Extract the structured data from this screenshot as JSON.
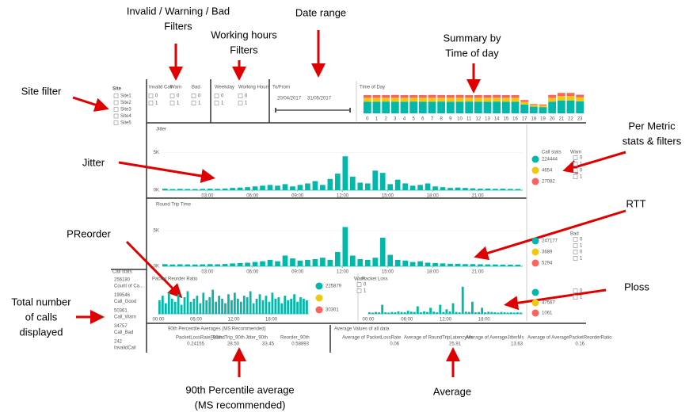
{
  "annotations": [
    {
      "lines": [
        "Invalid / Warning / Bad",
        "Filters"
      ]
    },
    {
      "lines": [
        "Date range"
      ]
    },
    {
      "lines": [
        "Working hours",
        "Filters"
      ]
    },
    {
      "lines": [
        "Summary by",
        "Time of day"
      ]
    },
    {
      "lines": [
        "Site filter"
      ]
    },
    {
      "lines": [
        "Per Metric",
        "stats & filters"
      ]
    },
    {
      "lines": [
        "Jitter"
      ]
    },
    {
      "lines": [
        "RTT"
      ]
    },
    {
      "lines": [
        "PReorder"
      ]
    },
    {
      "lines": [
        "Ploss"
      ]
    },
    {
      "lines": [
        "Total number",
        "of calls",
        "displayed"
      ]
    },
    {
      "lines": [
        "90th Percentile average",
        "(MS recommended)"
      ]
    },
    {
      "lines": [
        "Average"
      ]
    }
  ],
  "site_filter": {
    "title": "Site",
    "options": [
      "Site1",
      "Site2",
      "Site3",
      "Site4",
      "Site5"
    ]
  },
  "status_filters": {
    "groups": [
      {
        "title": "Invalid Call",
        "options": [
          "0",
          "1"
        ]
      },
      {
        "title": "Warn",
        "options": [
          "0",
          "1"
        ]
      },
      {
        "title": "Bad",
        "options": [
          "0",
          "1"
        ]
      }
    ]
  },
  "hours_filters": {
    "groups": [
      {
        "title": "Weekday",
        "options": [
          "0",
          "1"
        ]
      },
      {
        "title": "Working Hours",
        "options": [
          "0",
          "1"
        ]
      }
    ]
  },
  "date_range": {
    "title": "To/From",
    "from": "20/04/2017",
    "to": "31/05/2017"
  },
  "time_of_day": {
    "type": "bar",
    "stacked": true,
    "title": "Time of Day",
    "categories": [
      "0",
      "1",
      "2",
      "3",
      "4",
      "5",
      "6",
      "7",
      "8",
      "9",
      "10",
      "11",
      "12",
      "13",
      "14",
      "15",
      "16",
      "17",
      "18",
      "19",
      "20",
      "21",
      "22",
      "23"
    ],
    "ylim": [
      0,
      100
    ],
    "series": [
      {
        "color": "#01b8aa",
        "values": [
          52,
          52,
          53,
          52,
          52,
          53,
          52,
          52,
          53,
          52,
          52,
          53,
          52,
          52,
          53,
          52,
          52,
          40,
          30,
          28,
          52,
          58,
          58,
          54
        ]
      },
      {
        "color": "#f2c80f",
        "values": [
          18,
          18,
          17,
          18,
          18,
          17,
          18,
          18,
          17,
          18,
          18,
          17,
          18,
          18,
          17,
          18,
          18,
          12,
          8,
          8,
          18,
          20,
          20,
          18
        ]
      },
      {
        "color": "#fd625e",
        "values": [
          12,
          12,
          12,
          13,
          12,
          12,
          12,
          13,
          12,
          12,
          13,
          12,
          12,
          12,
          13,
          12,
          12,
          8,
          4,
          4,
          13,
          14,
          14,
          12
        ]
      }
    ]
  },
  "timeline_x": [
    0,
    0.5,
    1,
    1.5,
    2,
    2.5,
    3,
    3.5,
    4,
    4.5,
    5,
    5.5,
    6,
    6.5,
    7,
    7.5,
    8,
    8.5,
    9,
    9.5,
    10,
    10.5,
    11,
    11.5,
    12,
    12.5,
    13,
    13.5,
    14,
    14.5,
    15,
    15.5,
    16,
    16.5,
    17,
    17.5,
    18,
    18.5,
    19,
    19.5,
    20,
    20.5,
    21,
    21.5,
    22,
    22.5,
    23,
    23.5
  ],
  "jitter": {
    "type": "bar",
    "title": "Jitter",
    "color": "#01b8aa",
    "xlim": [
      0,
      24
    ],
    "ylim": [
      0,
      6000
    ],
    "yticks": [
      {
        "value": 0,
        "label": "0K"
      },
      {
        "value": 5000,
        "label": "5K"
      }
    ],
    "xticks": [
      {
        "value": 3,
        "label": "03:00"
      },
      {
        "value": 6,
        "label": "06:00"
      },
      {
        "value": 9,
        "label": "09:00"
      },
      {
        "value": 12,
        "label": "12:00"
      },
      {
        "value": 15,
        "label": "15:00"
      },
      {
        "value": 18,
        "label": "18:00"
      },
      {
        "value": 21,
        "label": "21:00"
      }
    ],
    "values": [
      200,
      150,
      180,
      160,
      150,
      170,
      200,
      180,
      220,
      300,
      350,
      400,
      500,
      600,
      700,
      600,
      800,
      500,
      700,
      900,
      1200,
      700,
      1500,
      2200,
      4500,
      1800,
      1000,
      900,
      2600,
      2300,
      800,
      1400,
      900,
      600,
      700,
      900,
      500,
      400,
      300,
      350,
      300,
      250,
      200,
      220,
      180,
      200,
      170,
      160
    ]
  },
  "jitter_stats": {
    "title": "Call stats",
    "filter_title": "Warn",
    "options": [
      "0",
      "1",
      "0",
      "1"
    ],
    "rows": [
      {
        "color": "#01b8aa",
        "count": 224444
      },
      {
        "color": "#f2c80f",
        "count": 4654
      },
      {
        "color": "#fd625e",
        "count": 27082
      }
    ]
  },
  "rtt": {
    "type": "bar",
    "title": "Round Trip Time",
    "color": "#01b8aa",
    "xlim": [
      0,
      24
    ],
    "ylim": [
      0,
      6000
    ],
    "yticks": [
      {
        "value": 0,
        "label": "0K"
      },
      {
        "value": 5000,
        "label": "5K"
      }
    ],
    "xticks": [
      {
        "value": 3,
        "label": "03:00"
      },
      {
        "value": 6,
        "label": "06:00"
      },
      {
        "value": 9,
        "label": "09:00"
      },
      {
        "value": 12,
        "label": "12:00"
      },
      {
        "value": 15,
        "label": "15:00"
      },
      {
        "value": 18,
        "label": "18:00"
      },
      {
        "value": 21,
        "label": "21:00"
      }
    ],
    "values": [
      300,
      250,
      280,
      260,
      250,
      270,
      300,
      280,
      320,
      400,
      450,
      500,
      600,
      700,
      900,
      700,
      1500,
      1100,
      800,
      900,
      1000,
      1200,
      900,
      2000,
      5500,
      1500,
      1000,
      900,
      1200,
      4000,
      1600,
      900,
      800,
      600,
      700,
      500,
      450,
      400,
      350,
      350,
      300,
      300,
      280,
      260,
      250,
      240,
      230,
      220
    ]
  },
  "rtt_stats": {
    "filter_title": "Bad",
    "options": [
      "0",
      "1",
      "0",
      "1"
    ],
    "rows": [
      {
        "color": "#01b8aa",
        "count": 247177
      },
      {
        "color": "#f2c80f",
        "count": 3689
      },
      {
        "color": "#fd625e",
        "count": 5294
      }
    ]
  },
  "call_stats": {
    "title": "Call stats",
    "items": [
      {
        "value": 256180,
        "label": "Count of Ca..."
      },
      {
        "value": 199546,
        "label": "Call_Good"
      },
      {
        "value": 50361,
        "label": "Call_Warn"
      },
      {
        "value": 34757,
        "label": "Call_Bad"
      },
      {
        "value": 242,
        "label": "InvalidCall"
      }
    ]
  },
  "preorder": {
    "type": "bar",
    "title": "Packet Reorder Ratio",
    "color": "#01b8aa",
    "xlim": [
      0,
      24
    ],
    "ylim": [
      0,
      1
    ],
    "xticks": [
      {
        "value": 0,
        "label": "00:00"
      },
      {
        "value": 6,
        "label": "06:00"
      },
      {
        "value": 12,
        "label": "12:00"
      },
      {
        "value": 18,
        "label": "18:00"
      }
    ],
    "values": [
      0.45,
      0.6,
      0.35,
      0.7,
      0.5,
      0.4,
      0.65,
      0.3,
      0.55,
      0.75,
      0.4,
      0.5,
      0.6,
      0.35,
      0.7,
      0.45,
      0.55,
      0.8,
      0.4,
      0.6,
      0.5,
      0.35,
      0.65,
      0.45,
      0.7,
      0.5,
      0.4,
      0.6,
      0.55,
      0.75,
      0.35,
      0.5,
      0.65,
      0.45,
      0.6,
      0.4,
      0.7,
      0.5,
      0.55,
      0.35,
      0.6,
      0.45,
      0.5,
      0.65,
      0.4,
      0.55,
      0.5,
      0.45
    ]
  },
  "preorder_stats": {
    "filter_title": "Warn",
    "options": [
      "0",
      "1"
    ],
    "rows": [
      {
        "color": "#01b8aa",
        "count": 225879
      },
      {
        "color": "#f2c80f"
      },
      {
        "color": "#fd625e",
        "count": 30301
      }
    ]
  },
  "ploss": {
    "type": "bar",
    "title": "Packet Loss",
    "color": "#01b8aa",
    "xlim": [
      0,
      24
    ],
    "ylim": [
      0,
      1
    ],
    "xticks": [
      {
        "value": 0,
        "label": "00:00"
      },
      {
        "value": 6,
        "label": "06:00"
      },
      {
        "value": 12,
        "label": "12:00"
      },
      {
        "value": 18,
        "label": "18:00"
      }
    ],
    "values": [
      0.05,
      0.04,
      0.06,
      0.05,
      0.3,
      0.05,
      0.04,
      0.06,
      0.05,
      0.08,
      0.06,
      0.05,
      0.1,
      0.07,
      0.06,
      0.25,
      0.05,
      0.08,
      0.06,
      0.2,
      0.07,
      0.05,
      0.3,
      0.06,
      0.15,
      0.08,
      0.35,
      0.06,
      0.05,
      0.9,
      0.07,
      0.06,
      0.4,
      0.05,
      0.06,
      0.2,
      0.05,
      0.07,
      0.06,
      0.05,
      0.04,
      0.06,
      0.05,
      0.04,
      0.05,
      0.04,
      0.05,
      0.04
    ]
  },
  "ploss_stats": {
    "options": [
      "0",
      "1"
    ],
    "rows": [
      {
        "color": "#01b8aa"
      },
      {
        "color": "#f2c80f",
        "count": 47567
      },
      {
        "color": "#fd625e",
        "count": 1061
      }
    ]
  },
  "percentile": {
    "title": "90th Percentile Averages (MS Recommended)",
    "columns": [
      {
        "header": "PacketLossRate_90th",
        "value": "0.24155"
      },
      {
        "header": "RoundTrip_90th",
        "value": "28.50"
      },
      {
        "header": "Jitter_90th",
        "value": "33.45"
      },
      {
        "header": "Reorder_90th",
        "value": "0.58893"
      }
    ]
  },
  "averages": {
    "title": "Average Values of all data",
    "columns": [
      {
        "header": "Average of PacketLossRate",
        "value": "0.06"
      },
      {
        "header": "Average of RoundTripLatencyMs",
        "value": "25.91"
      },
      {
        "header": "Average of AverageJitterMs",
        "value": "13.63"
      },
      {
        "header": "Average of AveragePacketReorderRatio",
        "value": "0.16"
      }
    ]
  }
}
